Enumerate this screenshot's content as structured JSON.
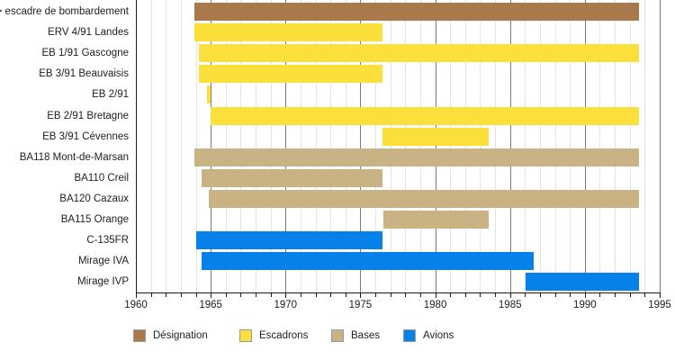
{
  "chart_data": {
    "type": "bar",
    "subtype": "gantt-timeline",
    "title": "",
    "x_axis": {
      "min": 1960,
      "max": 1995,
      "major_tick_step": 5,
      "minor_tick_step": 1,
      "major_tick_labels": [
        "1960",
        "1965",
        "1970",
        "1975",
        "1980",
        "1985",
        "1990",
        "1995"
      ],
      "grid": "on"
    },
    "rows": [
      {
        "label": "br> escadre de bombardement",
        "category": "Désignation",
        "start": 1963.9,
        "end": 1993.6
      },
      {
        "label": "ERV 4/91 Landes",
        "category": "Escadrons",
        "start": 1963.9,
        "end": 1976.45
      },
      {
        "label": "EB 1/91 Gascogne",
        "category": "Escadrons",
        "start": 1964.2,
        "end": 1993.6
      },
      {
        "label": "EB 3/91 Beauvaisis",
        "category": "Escadrons",
        "start": 1964.2,
        "end": 1976.45
      },
      {
        "label": "EB 2/91",
        "category": "Escadrons",
        "start": 1964.75,
        "end": 1965.0
      },
      {
        "label": "EB 2/91 Bretagne",
        "category": "Escadrons",
        "start": 1965.0,
        "end": 1993.6
      },
      {
        "label": "EB 3/91 Cévennes",
        "category": "Escadrons",
        "start": 1976.5,
        "end": 1983.6
      },
      {
        "label": "BA118 Mont-de-Marsan",
        "category": "Bases",
        "start": 1963.9,
        "end": 1993.6
      },
      {
        "label": "BA110 Creil",
        "category": "Bases",
        "start": 1964.4,
        "end": 1976.45
      },
      {
        "label": "BA120 Cazaux",
        "category": "Bases",
        "start": 1964.85,
        "end": 1993.6
      },
      {
        "label": "BA115 Orange",
        "category": "Bases",
        "start": 1976.55,
        "end": 1983.6
      },
      {
        "label": "C-135FR",
        "category": "Avions",
        "start": 1964.0,
        "end": 1976.45
      },
      {
        "label": "Mirage IVA",
        "category": "Avions",
        "start": 1964.4,
        "end": 1986.6
      },
      {
        "label": "Mirage IVP",
        "category": "Avions",
        "start": 1986.05,
        "end": 1993.6
      }
    ],
    "legend": [
      {
        "label": "Désignation",
        "color": "#a9794c"
      },
      {
        "label": "Escadrons",
        "color": "#fbe03c"
      },
      {
        "label": "Bases",
        "color": "#c9b283"
      },
      {
        "label": "Avions",
        "color": "#0681e9"
      }
    ],
    "legend_position": "bottom",
    "colors": {
      "minor_grid": "#e3e3e3",
      "major_grid": "#7a7a7a",
      "axis": "#1a1a1a"
    }
  }
}
